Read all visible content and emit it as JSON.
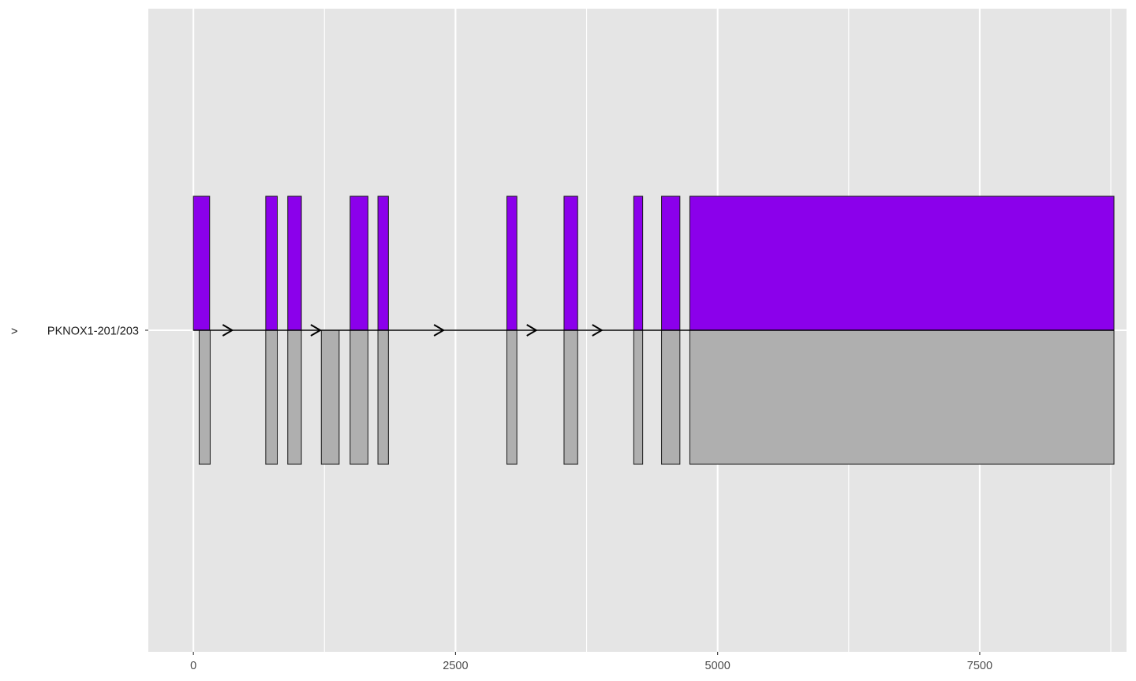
{
  "chart_data": {
    "type": "gene-structure",
    "transcript": "PKNOX1-201/203",
    "strand_marker": ">",
    "xlim": [
      -430,
      8900
    ],
    "x_ticks": [
      0,
      2500,
      5000,
      7500
    ],
    "x_tick_labels": [
      "0",
      "2500",
      "5000",
      "7500"
    ],
    "grid": true,
    "colors": {
      "panel": "#e5e5e5",
      "grid": "#ffffff",
      "upper_fill": "#8b00eb",
      "lower_fill": "#afafaf",
      "outline": "#1a1a1a",
      "intron_line": "#000000"
    },
    "upper_exons": [
      {
        "start": 0,
        "end": 155
      },
      {
        "start": 690,
        "end": 800
      },
      {
        "start": 900,
        "end": 1030
      },
      {
        "start": 1495,
        "end": 1665
      },
      {
        "start": 1760,
        "end": 1860
      },
      {
        "start": 2990,
        "end": 3085
      },
      {
        "start": 3535,
        "end": 3665
      },
      {
        "start": 4200,
        "end": 4285
      },
      {
        "start": 4465,
        "end": 4640
      },
      {
        "start": 4735,
        "end": 8780
      }
    ],
    "lower_exons": [
      {
        "start": 55,
        "end": 160
      },
      {
        "start": 690,
        "end": 800
      },
      {
        "start": 900,
        "end": 1030
      },
      {
        "start": 1220,
        "end": 1390
      },
      {
        "start": 1495,
        "end": 1665
      },
      {
        "start": 1760,
        "end": 1860
      },
      {
        "start": 2990,
        "end": 3085
      },
      {
        "start": 3535,
        "end": 3665
      },
      {
        "start": 4200,
        "end": 4285
      },
      {
        "start": 4465,
        "end": 4640
      },
      {
        "start": 4735,
        "end": 8780
      }
    ],
    "intron_span": [
      0,
      8780
    ],
    "direction_arrows": [
      370,
      1210,
      2385,
      3270,
      3895
    ]
  }
}
